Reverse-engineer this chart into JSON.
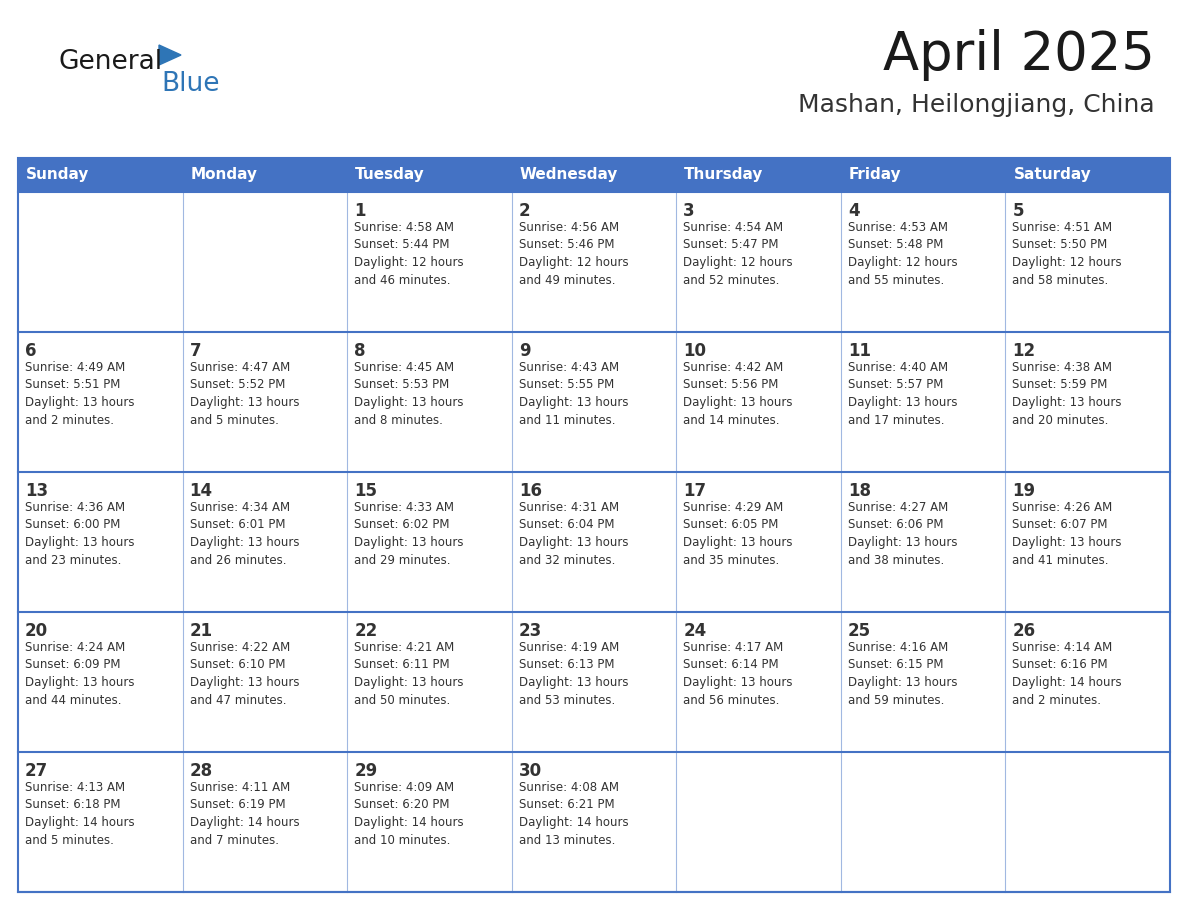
{
  "title": "April 2025",
  "subtitle": "Mashan, Heilongjiang, China",
  "days_of_week": [
    "Sunday",
    "Monday",
    "Tuesday",
    "Wednesday",
    "Thursday",
    "Friday",
    "Saturday"
  ],
  "header_bg": "#4472C4",
  "header_text": "#FFFFFF",
  "cell_bg": "#FFFFFF",
  "text_color": "#333333",
  "line_color": "#4472C4",
  "title_color": "#1a1a1a",
  "subtitle_color": "#333333",
  "logo_general_color": "#1a1a1a",
  "logo_blue_color": "#2E75B6",
  "weeks": [
    [
      {
        "day": "",
        "info": ""
      },
      {
        "day": "",
        "info": ""
      },
      {
        "day": "1",
        "info": "Sunrise: 4:58 AM\nSunset: 5:44 PM\nDaylight: 12 hours\nand 46 minutes."
      },
      {
        "day": "2",
        "info": "Sunrise: 4:56 AM\nSunset: 5:46 PM\nDaylight: 12 hours\nand 49 minutes."
      },
      {
        "day": "3",
        "info": "Sunrise: 4:54 AM\nSunset: 5:47 PM\nDaylight: 12 hours\nand 52 minutes."
      },
      {
        "day": "4",
        "info": "Sunrise: 4:53 AM\nSunset: 5:48 PM\nDaylight: 12 hours\nand 55 minutes."
      },
      {
        "day": "5",
        "info": "Sunrise: 4:51 AM\nSunset: 5:50 PM\nDaylight: 12 hours\nand 58 minutes."
      }
    ],
    [
      {
        "day": "6",
        "info": "Sunrise: 4:49 AM\nSunset: 5:51 PM\nDaylight: 13 hours\nand 2 minutes."
      },
      {
        "day": "7",
        "info": "Sunrise: 4:47 AM\nSunset: 5:52 PM\nDaylight: 13 hours\nand 5 minutes."
      },
      {
        "day": "8",
        "info": "Sunrise: 4:45 AM\nSunset: 5:53 PM\nDaylight: 13 hours\nand 8 minutes."
      },
      {
        "day": "9",
        "info": "Sunrise: 4:43 AM\nSunset: 5:55 PM\nDaylight: 13 hours\nand 11 minutes."
      },
      {
        "day": "10",
        "info": "Sunrise: 4:42 AM\nSunset: 5:56 PM\nDaylight: 13 hours\nand 14 minutes."
      },
      {
        "day": "11",
        "info": "Sunrise: 4:40 AM\nSunset: 5:57 PM\nDaylight: 13 hours\nand 17 minutes."
      },
      {
        "day": "12",
        "info": "Sunrise: 4:38 AM\nSunset: 5:59 PM\nDaylight: 13 hours\nand 20 minutes."
      }
    ],
    [
      {
        "day": "13",
        "info": "Sunrise: 4:36 AM\nSunset: 6:00 PM\nDaylight: 13 hours\nand 23 minutes."
      },
      {
        "day": "14",
        "info": "Sunrise: 4:34 AM\nSunset: 6:01 PM\nDaylight: 13 hours\nand 26 minutes."
      },
      {
        "day": "15",
        "info": "Sunrise: 4:33 AM\nSunset: 6:02 PM\nDaylight: 13 hours\nand 29 minutes."
      },
      {
        "day": "16",
        "info": "Sunrise: 4:31 AM\nSunset: 6:04 PM\nDaylight: 13 hours\nand 32 minutes."
      },
      {
        "day": "17",
        "info": "Sunrise: 4:29 AM\nSunset: 6:05 PM\nDaylight: 13 hours\nand 35 minutes."
      },
      {
        "day": "18",
        "info": "Sunrise: 4:27 AM\nSunset: 6:06 PM\nDaylight: 13 hours\nand 38 minutes."
      },
      {
        "day": "19",
        "info": "Sunrise: 4:26 AM\nSunset: 6:07 PM\nDaylight: 13 hours\nand 41 minutes."
      }
    ],
    [
      {
        "day": "20",
        "info": "Sunrise: 4:24 AM\nSunset: 6:09 PM\nDaylight: 13 hours\nand 44 minutes."
      },
      {
        "day": "21",
        "info": "Sunrise: 4:22 AM\nSunset: 6:10 PM\nDaylight: 13 hours\nand 47 minutes."
      },
      {
        "day": "22",
        "info": "Sunrise: 4:21 AM\nSunset: 6:11 PM\nDaylight: 13 hours\nand 50 minutes."
      },
      {
        "day": "23",
        "info": "Sunrise: 4:19 AM\nSunset: 6:13 PM\nDaylight: 13 hours\nand 53 minutes."
      },
      {
        "day": "24",
        "info": "Sunrise: 4:17 AM\nSunset: 6:14 PM\nDaylight: 13 hours\nand 56 minutes."
      },
      {
        "day": "25",
        "info": "Sunrise: 4:16 AM\nSunset: 6:15 PM\nDaylight: 13 hours\nand 59 minutes."
      },
      {
        "day": "26",
        "info": "Sunrise: 4:14 AM\nSunset: 6:16 PM\nDaylight: 14 hours\nand 2 minutes."
      }
    ],
    [
      {
        "day": "27",
        "info": "Sunrise: 4:13 AM\nSunset: 6:18 PM\nDaylight: 14 hours\nand 5 minutes."
      },
      {
        "day": "28",
        "info": "Sunrise: 4:11 AM\nSunset: 6:19 PM\nDaylight: 14 hours\nand 7 minutes."
      },
      {
        "day": "29",
        "info": "Sunrise: 4:09 AM\nSunset: 6:20 PM\nDaylight: 14 hours\nand 10 minutes."
      },
      {
        "day": "30",
        "info": "Sunrise: 4:08 AM\nSunset: 6:21 PM\nDaylight: 14 hours\nand 13 minutes."
      },
      {
        "day": "",
        "info": ""
      },
      {
        "day": "",
        "info": ""
      },
      {
        "day": "",
        "info": ""
      }
    ]
  ]
}
